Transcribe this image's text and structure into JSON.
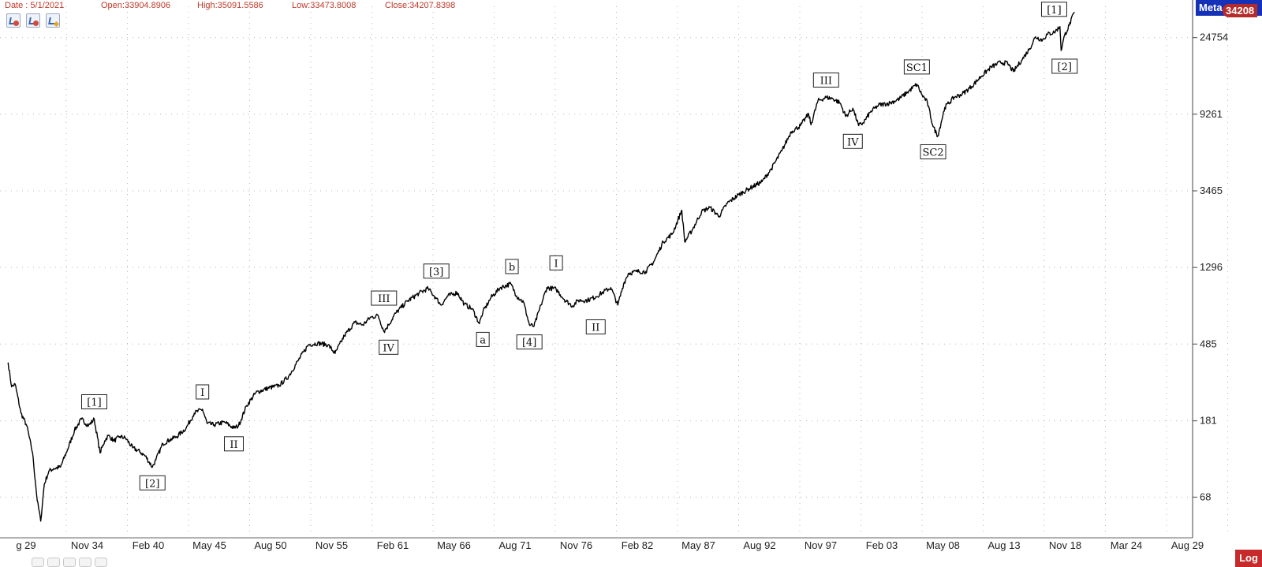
{
  "header": {
    "date": "Date : 5/1/2021",
    "open": "Open:33904.8906",
    "high": "High:35091.5586",
    "low": "Low:33473.8008",
    "close": "Close:34207.8398",
    "tool_icons": [
      "add-study-icon",
      "remove-study-icon",
      "edit-study-icon"
    ]
  },
  "badges": {
    "meta": "Meta",
    "last_price": "34208",
    "scale": "Log"
  },
  "colors": {
    "price_line": "#000000",
    "header_text": "#c0392b",
    "meta_badge": "#1531b8",
    "last_price_badge": "#b52a2a",
    "log_badge": "#c62a2a"
  },
  "chart_data": {
    "type": "line",
    "scale": "log",
    "grid": true,
    "x_ticks": [
      "g 29",
      "Nov 34",
      "Feb 40",
      "May 45",
      "Aug 50",
      "Nov 55",
      "Feb 61",
      "May 66",
      "Aug 71",
      "Nov 76",
      "Feb 82",
      "May 87",
      "Aug 92",
      "Nov 97",
      "Feb 03",
      "May 08",
      "Aug 13",
      "Nov 18",
      "Mar 24",
      "Aug 29"
    ],
    "y_ticks": [
      68,
      181,
      485,
      1296,
      3465,
      9261,
      24754
    ],
    "y_tick_labels": [
      "68",
      "181",
      "485",
      "1296",
      "3465",
      "9261",
      "24754"
    ],
    "ylim": [
      42,
      37000
    ],
    "xlim": [
      1929.0,
      2031.5
    ],
    "series": [
      {
        "x": [
          1929.7,
          1930.0,
          1930.3,
          1930.8,
          1931.3,
          1931.8,
          1932.2,
          1932.5,
          1932.8,
          1933.2,
          1933.6,
          1934.2,
          1934.8,
          1935.4,
          1936.0,
          1936.6,
          1937.1,
          1937.6,
          1938.0,
          1938.3,
          1938.8,
          1939.3,
          1939.8,
          1940.4,
          1941.0,
          1941.5,
          1942.1,
          1942.4,
          1943.0,
          1943.6,
          1944.2,
          1945.0,
          1945.7,
          1946.4,
          1946.8,
          1947.4,
          1948.3,
          1949.1,
          1949.5,
          1950.2,
          1951.0,
          1952.0,
          1953.0,
          1953.8,
          1954.6,
          1955.5,
          1956.3,
          1957.2,
          1957.8,
          1958.6,
          1959.5,
          1960.2,
          1960.8,
          1961.5,
          1962.0,
          1962.4,
          1963.0,
          1964.0,
          1965.0,
          1965.8,
          1966.5,
          1966.9,
          1967.5,
          1968.3,
          1968.9,
          1969.6,
          1970.2,
          1970.5,
          1971.2,
          1972.0,
          1972.9,
          1973.4,
          1974.0,
          1974.5,
          1974.9,
          1975.5,
          1976.0,
          1976.8,
          1977.5,
          1978.2,
          1978.7,
          1979.5,
          1980.2,
          1980.9,
          1981.5,
          1982.1,
          1982.6,
          1983.0,
          1983.7,
          1984.5,
          1985.2,
          1986.0,
          1986.8,
          1987.6,
          1987.85,
          1988.5,
          1989.3,
          1990.0,
          1990.8,
          1991.5,
          1992.5,
          1993.5,
          1994.5,
          1995.3,
          1996.2,
          1997.0,
          1997.8,
          1998.5,
          1998.7,
          1999.3,
          2000.0,
          2000.6,
          2001.2,
          2001.7,
          2002.3,
          2002.8,
          2003.2,
          2003.8,
          2004.5,
          2005.5,
          2006.3,
          2007.0,
          2007.8,
          2008.2,
          2008.7,
          2009.2,
          2009.6,
          2010.2,
          2011.0,
          2011.7,
          2012.5,
          2013.3,
          2014.2,
          2015.0,
          2015.6,
          2016.1,
          2016.8,
          2017.5,
          2018.0,
          2018.6,
          2019.0,
          2019.6,
          2020.1,
          2020.2,
          2020.5,
          2020.9,
          2021.33
        ],
        "y": [
          381,
          280,
          290,
          200,
          170,
          120,
          65,
          50,
          80,
          95,
          98,
          100,
          125,
          160,
          185,
          170,
          185,
          120,
          140,
          150,
          140,
          148,
          145,
          128,
          122,
          115,
          100,
          110,
          135,
          142,
          148,
          165,
          200,
          210,
          175,
          172,
          178,
          165,
          170,
          220,
          260,
          275,
          285,
          320,
          390,
          480,
          490,
          480,
          430,
          540,
          640,
          620,
          680,
          700,
          570,
          620,
          720,
          840,
          930,
          990,
          870,
          800,
          900,
          940,
          810,
          760,
          630,
          730,
          880,
          1000,
          1050,
          900,
          830,
          620,
          610,
          800,
          1000,
          980,
          860,
          790,
          850,
          850,
          890,
          950,
          1000,
          800,
          1050,
          1200,
          1230,
          1230,
          1400,
          1800,
          2000,
          2700,
          1800,
          2100,
          2650,
          2800,
          2500,
          2950,
          3300,
          3600,
          3900,
          4600,
          5800,
          7400,
          8000,
          9300,
          8100,
          11000,
          11500,
          11300,
          10700,
          9000,
          10000,
          8000,
          8300,
          9500,
          10400,
          10700,
          11300,
          12300,
          13600,
          12000,
          10800,
          7900,
          7000,
          10100,
          11500,
          12000,
          13200,
          15000,
          17000,
          18000,
          17800,
          16000,
          18500,
          21500,
          25000,
          24000,
          25800,
          26500,
          28500,
          21000,
          25500,
          29000,
          34208
        ]
      }
    ],
    "annotations": [
      {
        "text": "[1]",
        "x": 1937.1,
        "y": 185,
        "position": "above"
      },
      {
        "text": "[2]",
        "x": 1942.1,
        "y": 100,
        "position": "below"
      },
      {
        "text": "I",
        "x": 1946.4,
        "y": 210,
        "position": "above"
      },
      {
        "text": "II",
        "x": 1949.1,
        "y": 165,
        "position": "below"
      },
      {
        "text": "III",
        "x": 1962.0,
        "y": 700,
        "position": "above"
      },
      {
        "text": "IV",
        "x": 1962.4,
        "y": 570,
        "position": "below"
      },
      {
        "text": "[3]",
        "x": 1966.5,
        "y": 990,
        "position": "above"
      },
      {
        "text": "a",
        "x": 1970.5,
        "y": 630,
        "position": "below"
      },
      {
        "text": "b",
        "x": 1973.0,
        "y": 1050,
        "position": "above"
      },
      {
        "text": "[4]",
        "x": 1974.5,
        "y": 610,
        "position": "below"
      },
      {
        "text": "I",
        "x": 1976.8,
        "y": 1100,
        "position": "above"
      },
      {
        "text": "II",
        "x": 1980.2,
        "y": 740,
        "position": "below"
      },
      {
        "text": "III",
        "x": 2000.0,
        "y": 11500,
        "position": "above"
      },
      {
        "text": "IV",
        "x": 2002.3,
        "y": 8000,
        "position": "below"
      },
      {
        "text": "SC1",
        "x": 2007.8,
        "y": 13600,
        "position": "above"
      },
      {
        "text": "SC2",
        "x": 2009.2,
        "y": 7000,
        "position": "below"
      },
      {
        "text": "[1]",
        "x": 2019.6,
        "y": 28500,
        "position": "above"
      },
      {
        "text": "[2]",
        "x": 2020.5,
        "y": 21000,
        "position": "below"
      }
    ]
  }
}
